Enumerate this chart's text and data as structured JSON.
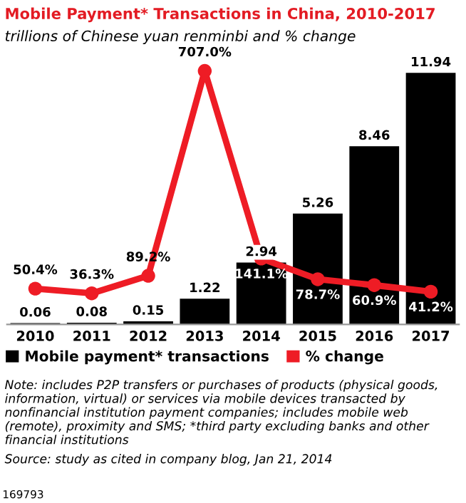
{
  "chart_data": {
    "type": "bar",
    "title": "Mobile Payment* Transactions in China, 2010-2017",
    "subtitle": "trillions of Chinese yuan renminbi and % change",
    "categories": [
      "2010",
      "2011",
      "2012",
      "2013",
      "2014",
      "2015",
      "2016",
      "2017"
    ],
    "series": [
      {
        "name": "Mobile payment* transactions",
        "color": "#000000",
        "values": [
          0.06,
          0.08,
          0.15,
          1.22,
          2.94,
          5.26,
          8.46,
          11.94
        ],
        "value_labels": [
          "0.06",
          "0.08",
          "0.15",
          "1.22",
          "2.94",
          "5.26",
          "8.46",
          "11.94"
        ]
      },
      {
        "name": "% change",
        "type": "line",
        "axis": "y2",
        "color": "#ee1c25",
        "marker": "circle",
        "values": [
          50.4,
          36.3,
          89.2,
          707.0,
          141.1,
          78.7,
          60.9,
          41.2
        ],
        "value_labels": [
          "50.4%",
          "36.3%",
          "89.2%",
          "707.0%",
          "141.1%",
          "78.7%",
          "60.9%",
          "41.2%"
        ]
      }
    ],
    "tick_labels": "x",
    "grid": false,
    "legend": "bottom",
    "annotations": [
      "Note: includes P2P transfers or purchases of products (physical goods, information, virtual) or services via mobile devices transacted by nonfinancial institution payment companies; includes mobile web (remote), proximity and SMS; *third party excluding banks and other financial institutions",
      "Source: study as cited in company blog, Jan 21, 2014",
      "169793"
    ]
  }
}
